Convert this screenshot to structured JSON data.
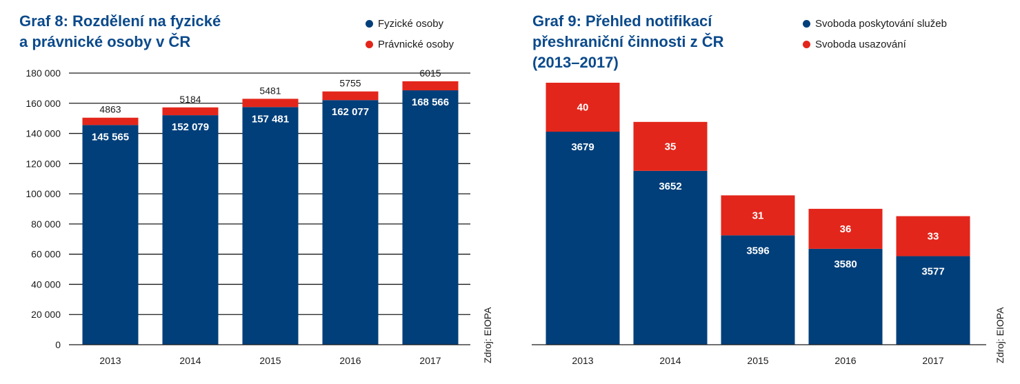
{
  "colors": {
    "primary": "#003f7a",
    "secondary": "#e3261b",
    "title": "#0b4a8b"
  },
  "chart_data": [
    {
      "id": "graf8",
      "type": "bar",
      "stacked": true,
      "title_lines": [
        "Graf 8: Rozdělení na fyzické",
        "a právnické osoby v ČR"
      ],
      "categories": [
        "2013",
        "2014",
        "2015",
        "2016",
        "2017"
      ],
      "series": [
        {
          "name": "Fyzické osoby",
          "color": "#003f7a",
          "values": [
            145565,
            152079,
            157481,
            162077,
            168566
          ],
          "labels": [
            "145 565",
            "152 079",
            "157 481",
            "162 077",
            "168 566"
          ]
        },
        {
          "name": "Právnické osoby",
          "color": "#e3261b",
          "values": [
            4863,
            5184,
            5481,
            5755,
            6015
          ],
          "labels": [
            "4863",
            "5184",
            "5481",
            "5755",
            "6015"
          ]
        }
      ],
      "ylim": [
        0,
        180000
      ],
      "y_ticks": [
        0,
        20000,
        40000,
        60000,
        80000,
        100000,
        120000,
        140000,
        160000,
        180000
      ],
      "y_tick_labels": [
        "0",
        "20 000",
        "40 000",
        "60 000",
        "80 000",
        "100 000",
        "120 000",
        "140 000",
        "160 000",
        "180 000"
      ],
      "grid": true,
      "legend_position": "top-right",
      "source": "Zdroj: EIOPA"
    },
    {
      "id": "graf9",
      "type": "bar",
      "stacked": true,
      "title_lines": [
        "Graf 9: Přehled notifikací",
        "přeshraniční činnosti z ČR",
        "(2013–2017)"
      ],
      "categories": [
        "2013",
        "2014",
        "2015",
        "2016",
        "2017"
      ],
      "series": [
        {
          "name": "Svoboda poskytování služeb",
          "color": "#003f7a",
          "values": [
            3679,
            3652,
            3596,
            3580,
            3577
          ],
          "labels": [
            "3679",
            "3652",
            "3596",
            "3580",
            "3577"
          ]
        },
        {
          "name": "Svoboda usazování",
          "color": "#e3261b",
          "values": [
            40,
            35,
            31,
            36,
            33
          ],
          "labels": [
            "40",
            "35",
            "31",
            "36",
            "33"
          ]
        }
      ],
      "y_axis_shown": false,
      "grid": false,
      "legend_position": "top-right",
      "source": "Zdroj: EIOPA"
    }
  ]
}
